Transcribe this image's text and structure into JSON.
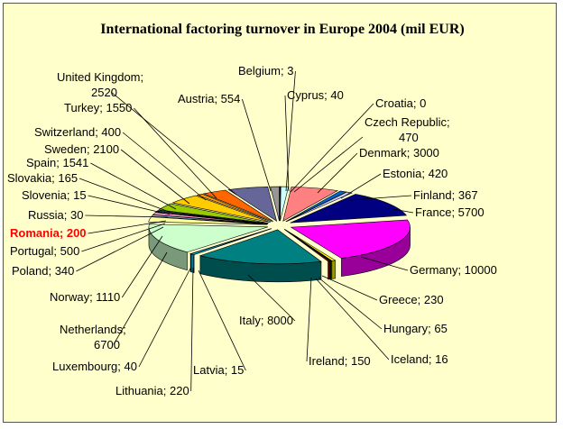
{
  "chart_data": {
    "type": "pie",
    "title": "International factoring turnover in Europe 2004 (mil EUR)",
    "highlight": "Romania",
    "highlight_color": "#ff0000",
    "slices": [
      {
        "label": "Belgium",
        "value": 3,
        "color": "#9999ff"
      },
      {
        "label": "Cyprus",
        "value": 40,
        "color": "#993366"
      },
      {
        "label": "Croatia",
        "value": 0,
        "color": "#ffffcc"
      },
      {
        "label": "Czech Republic",
        "value": 470,
        "color": "#ccffff"
      },
      {
        "label": "Denmark",
        "value": 3000,
        "color": "#ff8080"
      },
      {
        "label": "Estonia",
        "value": 420,
        "color": "#0066cc"
      },
      {
        "label": "Finland",
        "value": 367,
        "color": "#ccccff"
      },
      {
        "label": "France",
        "value": 5700,
        "color": "#000080"
      },
      {
        "label": "Germany",
        "value": 10000,
        "color": "#ff00ff"
      },
      {
        "label": "Greece",
        "value": 230,
        "color": "#ffff00"
      },
      {
        "label": "Hungary",
        "value": 65,
        "color": "#00ffff"
      },
      {
        "label": "Iceland",
        "value": 16,
        "color": "#800080"
      },
      {
        "label": "Ireland",
        "value": 150,
        "color": "#800000"
      },
      {
        "label": "Italy",
        "value": 8000,
        "color": "#008080"
      },
      {
        "label": "Latvia",
        "value": 15,
        "color": "#0000ff"
      },
      {
        "label": "Lithuania",
        "value": 220,
        "color": "#00ccff"
      },
      {
        "label": "Luxembourg",
        "value": 40,
        "color": "#ccffff"
      },
      {
        "label": "Netherlands",
        "value": 6700,
        "color": "#ccffcc"
      },
      {
        "label": "Norway",
        "value": 1110,
        "color": "#ffff99"
      },
      {
        "label": "Poland",
        "value": 340,
        "color": "#99ccff"
      },
      {
        "label": "Portugal",
        "value": 500,
        "color": "#ff99cc"
      },
      {
        "label": "Romania",
        "value": 200,
        "color": "#cc99ff"
      },
      {
        "label": "Russia",
        "value": 30,
        "color": "#ffcc99"
      },
      {
        "label": "Slovenia",
        "value": 15,
        "color": "#3366ff"
      },
      {
        "label": "Slovakia",
        "value": 165,
        "color": "#33cccc"
      },
      {
        "label": "Spain",
        "value": 1541,
        "color": "#99cc00"
      },
      {
        "label": "Sweden",
        "value": 2100,
        "color": "#ffcc00"
      },
      {
        "label": "Switzerland",
        "value": 400,
        "color": "#ff9900"
      },
      {
        "label": "Turkey",
        "value": 1550,
        "color": "#ff6600"
      },
      {
        "label": "United Kingdom",
        "value": 2520,
        "color": "#666699"
      },
      {
        "label": "Austria",
        "value": 554,
        "color": "#969696"
      }
    ]
  }
}
